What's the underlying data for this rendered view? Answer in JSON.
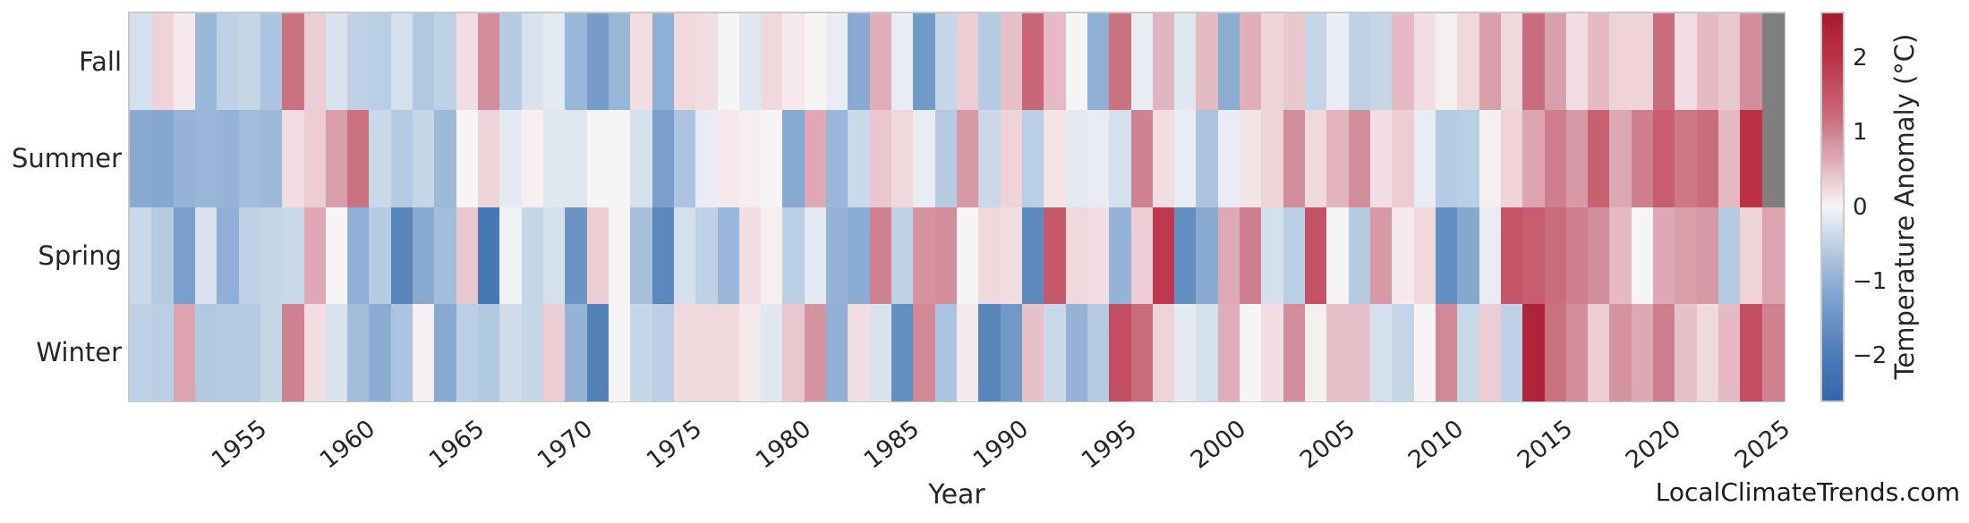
{
  "page": {
    "watermark": "LocalClimateTrends.com"
  },
  "chart_data": {
    "type": "heatmap",
    "xlabel": "Year",
    "rows": [
      "Fall",
      "Summer",
      "Spring",
      "Winter"
    ],
    "year_start": 1950,
    "year_end": 2025,
    "x_ticks": [
      1955,
      1960,
      1965,
      1970,
      1975,
      1980,
      1985,
      1990,
      1995,
      2000,
      2005,
      2010,
      2015,
      2020,
      2025
    ],
    "colorbar": {
      "label": "Temperature Anomaly (°C)",
      "ticks": [
        2,
        1,
        0,
        -1,
        -2
      ],
      "vmin": -2.6,
      "vmax": 2.6,
      "nan_color": "#7f7f7f"
    },
    "colormap_stops": [
      [
        -2.6,
        "#3267ab"
      ],
      [
        -2.0,
        "#4a7cb5"
      ],
      [
        -1.5,
        "#6b94c4"
      ],
      [
        -1.0,
        "#8fb0d4"
      ],
      [
        -0.6,
        "#b5cbe2"
      ],
      [
        -0.3,
        "#d4e0ec"
      ],
      [
        -0.1,
        "#e9edf3"
      ],
      [
        0,
        "#f6f4f4"
      ],
      [
        0.1,
        "#f5e9eb"
      ],
      [
        0.3,
        "#eed3d8"
      ],
      [
        0.6,
        "#e0aeb9"
      ],
      [
        0.9,
        "#d28f9b"
      ],
      [
        1.2,
        "#c96c7c"
      ],
      [
        1.6,
        "#c44f62"
      ],
      [
        2.0,
        "#bc3146"
      ],
      [
        2.6,
        "#a41b30"
      ]
    ],
    "series": [
      {
        "name": "Fall",
        "values": [
          -0.3,
          0.3,
          0.1,
          -0.9,
          -0.5,
          -0.45,
          -0.7,
          1.15,
          0.35,
          -0.25,
          -0.5,
          -0.55,
          -0.3,
          -0.65,
          -0.5,
          0.2,
          0.9,
          -0.6,
          -0.25,
          -0.15,
          -0.9,
          -1.35,
          -0.9,
          0.2,
          -1.0,
          0.25,
          0.2,
          0.0,
          -0.2,
          0.25,
          0.1,
          0.0,
          -0.1,
          -1.1,
          0.6,
          -0.1,
          -1.4,
          -0.45,
          0.35,
          -0.6,
          0.45,
          1.3,
          0.5,
          0.0,
          -1.0,
          1.15,
          -0.1,
          0.55,
          -0.2,
          0.5,
          -1.05,
          0.6,
          0.3,
          0.4,
          -0.45,
          -0.1,
          -0.5,
          -0.45,
          0.5,
          0.2,
          0.05,
          0.25,
          0.75,
          0.25,
          1.2,
          0.75,
          0.2,
          0.5,
          0.3,
          0.3,
          1.2,
          0.2,
          0.5,
          0.4,
          0.9,
          null
        ]
      },
      {
        "name": "Summer",
        "values": [
          -1.1,
          -1.15,
          -0.95,
          -0.9,
          -0.95,
          -0.8,
          -0.85,
          0.2,
          0.35,
          0.75,
          1.15,
          -0.4,
          -0.6,
          -0.45,
          -0.85,
          0.0,
          0.3,
          -0.15,
          0.05,
          -0.2,
          -0.2,
          0.0,
          0.0,
          -0.3,
          -1.3,
          -0.7,
          -0.1,
          0.1,
          0.05,
          0.0,
          -1.1,
          0.65,
          -0.9,
          -0.4,
          0.4,
          0.25,
          -0.1,
          -0.6,
          0.8,
          -0.4,
          0.3,
          -0.55,
          0.15,
          -0.15,
          -0.1,
          -0.3,
          1.0,
          0.2,
          -0.1,
          -0.7,
          -0.1,
          0.15,
          0.3,
          0.9,
          0.25,
          0.55,
          0.9,
          0.2,
          0.35,
          -0.1,
          -0.6,
          -0.55,
          0.05,
          0.3,
          0.7,
          1.05,
          0.8,
          1.35,
          0.65,
          1.05,
          1.4,
          1.1,
          1.2,
          0.5,
          2.0,
          null
        ]
      },
      {
        "name": "Spring",
        "values": [
          -0.4,
          -0.6,
          -1.3,
          -0.25,
          -1.0,
          -0.5,
          -0.45,
          -0.4,
          0.65,
          0.0,
          -1.0,
          -0.6,
          -1.8,
          -1.1,
          -0.8,
          0.4,
          -2.1,
          -0.05,
          -0.45,
          -0.3,
          -1.5,
          0.35,
          0.0,
          -0.75,
          -1.75,
          -0.3,
          -0.5,
          -0.9,
          0.2,
          0.05,
          -0.55,
          -0.15,
          -0.95,
          -1.05,
          1.0,
          -0.5,
          0.85,
          0.9,
          0.0,
          0.25,
          0.2,
          -1.7,
          1.45,
          0.25,
          0.2,
          -0.95,
          0.35,
          1.9,
          -1.6,
          -1.1,
          0.65,
          1.05,
          -0.3,
          -0.55,
          1.55,
          0.0,
          -0.6,
          0.8,
          0.1,
          0.25,
          -1.6,
          -1.15,
          -0.1,
          1.5,
          1.4,
          1.2,
          1.05,
          0.9,
          0.5,
          0.0,
          0.65,
          0.75,
          0.8,
          -0.6,
          0.3,
          0.7
        ]
      },
      {
        "name": "Winter",
        "values": [
          -0.5,
          -0.55,
          0.7,
          -0.65,
          -0.6,
          -0.6,
          -0.45,
          1.0,
          0.2,
          -0.25,
          -0.8,
          -1.05,
          -0.7,
          0.05,
          -1.1,
          -0.55,
          -0.65,
          -0.35,
          -0.45,
          0.35,
          -0.95,
          -1.9,
          0.0,
          -0.45,
          -0.55,
          0.25,
          0.25,
          0.25,
          0.1,
          -0.2,
          0.4,
          0.85,
          -1.0,
          0.2,
          -0.25,
          -1.6,
          0.95,
          -0.7,
          0.1,
          -1.8,
          -1.4,
          0.45,
          -0.4,
          -0.95,
          -0.6,
          1.6,
          1.2,
          0.3,
          -0.15,
          -0.3,
          0.6,
          0.0,
          0.2,
          0.9,
          0.05,
          0.45,
          0.45,
          -0.3,
          -0.45,
          0.0,
          0.95,
          -0.4,
          0.35,
          -0.5,
          2.35,
          1.15,
          0.9,
          0.35,
          0.85,
          0.65,
          1.05,
          0.45,
          0.25,
          0.5,
          1.6,
          1.0
        ]
      }
    ]
  }
}
